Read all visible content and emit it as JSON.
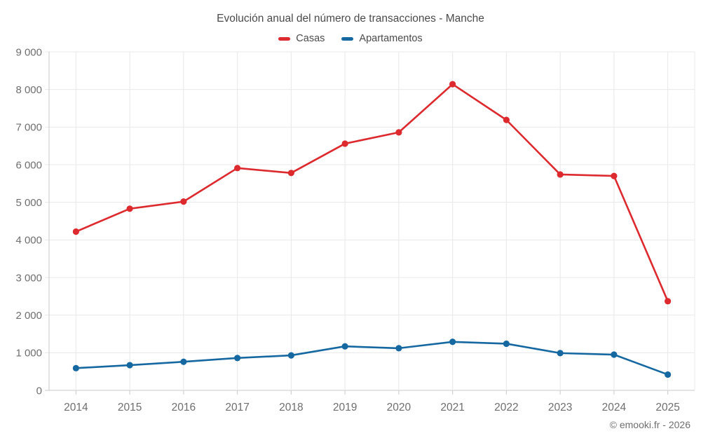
{
  "title": "Evolución anual del número de transacciones - Manche",
  "copyright": "© emooki.fr - 2026",
  "chart_data": {
    "type": "line",
    "title": "Evolución anual del número de transacciones - Manche",
    "categories": [
      "2014",
      "2015",
      "2016",
      "2017",
      "2018",
      "2019",
      "2020",
      "2021",
      "2022",
      "2023",
      "2024",
      "2025"
    ],
    "series": [
      {
        "name": "Casas",
        "color": "#dc2a2e",
        "values": [
          4220,
          4830,
          5020,
          5910,
          5780,
          6560,
          6860,
          8140,
          7190,
          5740,
          5700,
          2370
        ]
      },
      {
        "name": "Apartamentos",
        "color": "#1668a1",
        "values": [
          590,
          670,
          760,
          860,
          930,
          1170,
          1120,
          1290,
          1240,
          990,
          950,
          420
        ]
      }
    ],
    "xlabel": "",
    "ylabel": "",
    "ylim": [
      0,
      9000
    ],
    "ytick_step": 1000,
    "ytick_labels": [
      "0",
      "1 000",
      "2 000",
      "3 000",
      "4 000",
      "5 000",
      "6 000",
      "7 000",
      "8 000",
      "9 000"
    ],
    "grid": true,
    "legend_position": "top"
  }
}
